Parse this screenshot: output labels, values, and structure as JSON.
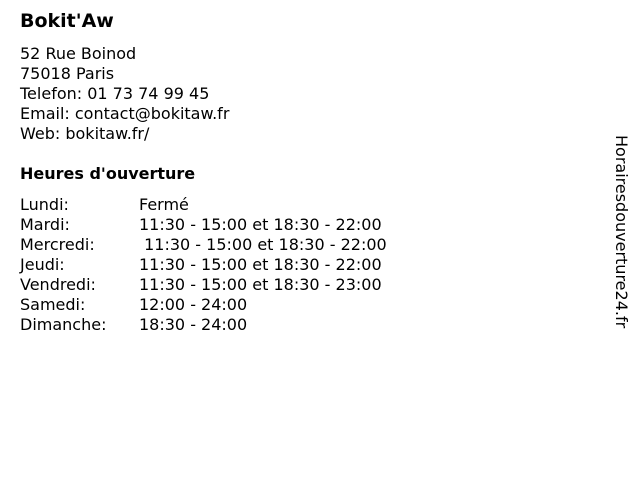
{
  "title": "Bokit'Aw",
  "address": [
    "52 Rue Boinod",
    "75018 Paris",
    "Telefon: 01 73 74 99 45",
    "Email: contact@bokitaw.fr",
    "Web: bokitaw.fr/"
  ],
  "hours_title": "Heures d'ouverture",
  "hours": [
    {
      "day": "Lundi:",
      "time": "Fermé"
    },
    {
      "day": "Mardi:",
      "time": "11:30 - 15:00 et 18:30 - 22:00"
    },
    {
      "day": "Mercredi:",
      "time": " 11:30 - 15:00 et 18:30 - 22:00"
    },
    {
      "day": "Jeudi:",
      "time": "11:30 - 15:00 et 18:30 - 22:00"
    },
    {
      "day": "Vendredi:",
      "time": "11:30 - 15:00 et 18:30 - 23:00"
    },
    {
      "day": "Samedi:",
      "time": "12:00 - 24:00"
    },
    {
      "day": "Dimanche:",
      "time": "18:30 - 24:00"
    }
  ],
  "watermark": "Horairesdouverture24.fr"
}
